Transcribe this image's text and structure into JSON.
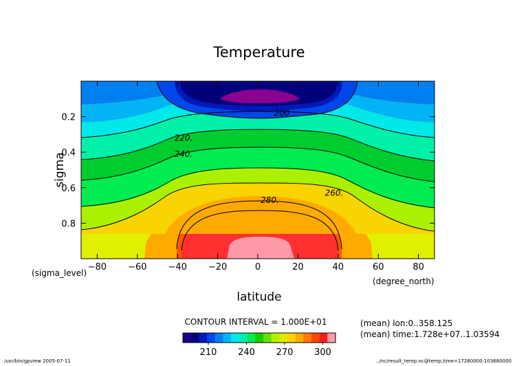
{
  "chart_data": {
    "type": "heatmap",
    "title": "Temperature",
    "xlabel": "latitude",
    "ylabel": "sigma",
    "x_unit": "(degree_north)",
    "y_unit": "(sigma_level)",
    "xlim": [
      -88,
      88
    ],
    "ylim": [
      0.0,
      1.0
    ],
    "y_inverted": true,
    "x_ticks": [
      -80,
      -60,
      -40,
      -20,
      0,
      20,
      40,
      60,
      80
    ],
    "x_tick_labels": [
      "−80",
      "−60",
      "−40",
      "−20",
      "0",
      "20",
      "40",
      "60",
      "80"
    ],
    "y_ticks": [
      0.2,
      0.4,
      0.6,
      0.8
    ],
    "y_tick_labels": [
      "0.2",
      "0.4",
      "0.6",
      "0.8"
    ],
    "contour_labels": [
      {
        "text": "200",
        "lat": 12,
        "sigma": 0.18
      },
      {
        "text": "220.",
        "lat": -37,
        "sigma": 0.32
      },
      {
        "text": "240.",
        "lat": -37,
        "sigma": 0.41
      },
      {
        "text": "260.",
        "lat": 38,
        "sigma": 0.63
      },
      {
        "text": "280.",
        "lat": 6,
        "sigma": 0.67
      }
    ],
    "contour_interval": "CONTOUR INTERVAL = 1.000E+01",
    "colorbar": {
      "tick_labels": [
        "210",
        "240",
        "270",
        "300"
      ],
      "tick_values": [
        210,
        240,
        270,
        300
      ],
      "range": [
        190,
        310
      ],
      "colors": [
        "#1a008a",
        "#00007a",
        "#0018b8",
        "#0046e8",
        "#0080f0",
        "#00b4f5",
        "#00e8e8",
        "#00f0a8",
        "#00ec50",
        "#18cc00",
        "#66de00",
        "#b0f000",
        "#dcec00",
        "#f8d400",
        "#ffaa00",
        "#ff7800",
        "#ff4800",
        "#f42020",
        "#ff9aa8"
      ]
    },
    "annotations": [
      "(mean) lon:0..358.125",
      "(mean) time:1.728e+07..1.03594"
    ],
    "footer_left": "/usr/bin/gpview  2005-07-11",
    "footer_right": "../nc/result_temp.nc@temp,time=17280000:103680000",
    "grid": false
  }
}
